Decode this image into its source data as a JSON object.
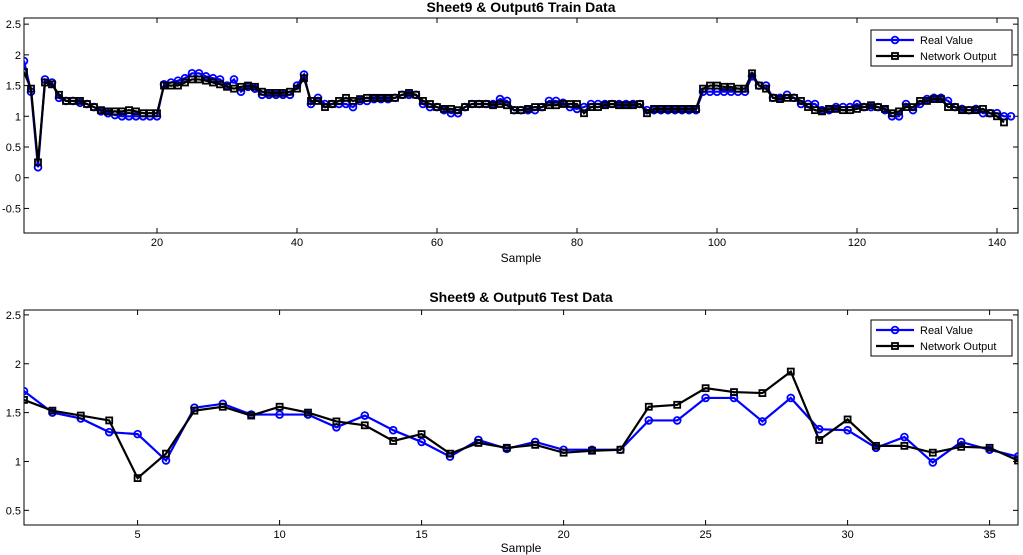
{
  "chart_data": [
    {
      "type": "line",
      "title": "Sheet9 & Output6 Train Data",
      "xlabel": "Sample",
      "ylabel": "",
      "xlim": [
        1,
        143
      ],
      "ylim": [
        -0.9,
        2.6
      ],
      "xticks": [
        20,
        40,
        60,
        80,
        100,
        120,
        140
      ],
      "yticks": [
        -0.5,
        0,
        0.5,
        1,
        1.5,
        2,
        2.5
      ],
      "ytick_labels": [
        "-0.5",
        "0",
        "0.5",
        "1",
        "1.5",
        "2",
        "2.5"
      ],
      "grid": false,
      "legend_position": "top-right",
      "x_start": 1,
      "series": [
        {
          "name": "Real Value",
          "color": "#0000ff",
          "marker": "circle",
          "values": [
            1.9,
            1.4,
            0.17,
            1.6,
            1.55,
            1.3,
            1.25,
            1.25,
            1.22,
            1.2,
            1.15,
            1.08,
            1.05,
            1.02,
            1.0,
            1.0,
            1.0,
            1.0,
            1.0,
            1.0,
            1.52,
            1.55,
            1.58,
            1.62,
            1.7,
            1.7,
            1.65,
            1.62,
            1.6,
            1.5,
            1.6,
            1.4,
            1.48,
            1.45,
            1.35,
            1.35,
            1.35,
            1.35,
            1.35,
            1.5,
            1.68,
            1.2,
            1.3,
            1.2,
            1.2,
            1.2,
            1.2,
            1.15,
            1.25,
            1.25,
            1.28,
            1.28,
            1.28,
            1.3,
            1.35,
            1.35,
            1.35,
            1.2,
            1.15,
            1.15,
            1.1,
            1.05,
            1.05,
            1.15,
            1.2,
            1.2,
            1.2,
            1.2,
            1.28,
            1.25,
            1.1,
            1.1,
            1.1,
            1.1,
            1.15,
            1.25,
            1.25,
            1.22,
            1.15,
            1.12,
            1.15,
            1.2,
            1.2,
            1.2,
            1.2,
            1.2,
            1.2,
            1.2,
            1.2,
            1.1,
            1.1,
            1.1,
            1.1,
            1.1,
            1.1,
            1.1,
            1.1,
            1.4,
            1.4,
            1.4,
            1.4,
            1.4,
            1.4,
            1.4,
            1.65,
            1.5,
            1.5,
            1.3,
            1.3,
            1.35,
            1.3,
            1.2,
            1.2,
            1.2,
            1.1,
            1.1,
            1.15,
            1.15,
            1.15,
            1.2,
            1.15,
            1.15,
            1.15,
            1.1,
            1.0,
            1.0,
            1.2,
            1.1,
            1.2,
            1.28,
            1.3,
            1.3,
            1.25,
            1.15,
            1.12,
            1.1,
            1.12,
            1.05,
            1.05,
            1.05,
            1.0,
            1.0
          ]
        },
        {
          "name": "Network Output",
          "color": "#000000",
          "marker": "square",
          "values": [
            1.72,
            1.45,
            0.25,
            1.55,
            1.52,
            1.35,
            1.25,
            1.25,
            1.25,
            1.2,
            1.15,
            1.1,
            1.08,
            1.08,
            1.08,
            1.1,
            1.08,
            1.05,
            1.05,
            1.05,
            1.5,
            1.5,
            1.5,
            1.55,
            1.6,
            1.6,
            1.58,
            1.55,
            1.52,
            1.48,
            1.45,
            1.48,
            1.5,
            1.48,
            1.4,
            1.38,
            1.38,
            1.38,
            1.4,
            1.45,
            1.62,
            1.25,
            1.25,
            1.15,
            1.2,
            1.25,
            1.3,
            1.25,
            1.28,
            1.3,
            1.3,
            1.3,
            1.3,
            1.3,
            1.35,
            1.38,
            1.35,
            1.25,
            1.2,
            1.15,
            1.12,
            1.12,
            1.1,
            1.15,
            1.2,
            1.2,
            1.2,
            1.18,
            1.2,
            1.18,
            1.1,
            1.1,
            1.12,
            1.15,
            1.15,
            1.18,
            1.18,
            1.2,
            1.2,
            1.2,
            1.05,
            1.15,
            1.15,
            1.18,
            1.2,
            1.18,
            1.18,
            1.18,
            1.2,
            1.05,
            1.12,
            1.12,
            1.12,
            1.12,
            1.12,
            1.12,
            1.12,
            1.45,
            1.5,
            1.5,
            1.48,
            1.48,
            1.45,
            1.45,
            1.7,
            1.5,
            1.45,
            1.3,
            1.28,
            1.3,
            1.3,
            1.25,
            1.15,
            1.1,
            1.08,
            1.12,
            1.12,
            1.1,
            1.1,
            1.12,
            1.15,
            1.18,
            1.15,
            1.12,
            1.05,
            1.08,
            1.15,
            1.15,
            1.25,
            1.25,
            1.28,
            1.28,
            1.15,
            1.15,
            1.1,
            1.1,
            1.1,
            1.12,
            1.05,
            1.0,
            0.9
          ]
        }
      ]
    },
    {
      "type": "line",
      "title": "Sheet9 & Output6 Test Data",
      "xlabel": "Sample",
      "ylabel": "",
      "xlim": [
        1,
        36
      ],
      "ylim": [
        0.35,
        2.55
      ],
      "xticks": [
        5,
        10,
        15,
        20,
        25,
        30,
        35
      ],
      "yticks": [
        0.5,
        1,
        1.5,
        2,
        2.5
      ],
      "ytick_labels": [
        "0.5",
        "1",
        "1.5",
        "2",
        "2.5"
      ],
      "grid": false,
      "legend_position": "top-right",
      "x_start": 1,
      "series": [
        {
          "name": "Real Value",
          "color": "#0000ff",
          "marker": "circle",
          "values": [
            1.72,
            1.5,
            1.44,
            1.3,
            1.28,
            1.01,
            1.55,
            1.59,
            1.48,
            1.48,
            1.48,
            1.35,
            1.47,
            1.32,
            1.2,
            1.05,
            1.22,
            1.13,
            1.2,
            1.12,
            1.12,
            1.12,
            1.42,
            1.42,
            1.65,
            1.65,
            1.41,
            1.65,
            1.33,
            1.32,
            1.14,
            1.25,
            0.99,
            1.2,
            1.12,
            1.05
          ]
        },
        {
          "name": "Network Output",
          "color": "#000000",
          "marker": "square",
          "values": [
            1.63,
            1.52,
            1.47,
            1.42,
            0.83,
            1.08,
            1.52,
            1.56,
            1.47,
            1.56,
            1.5,
            1.41,
            1.37,
            1.21,
            1.28,
            1.08,
            1.19,
            1.14,
            1.17,
            1.09,
            1.11,
            1.12,
            1.56,
            1.58,
            1.75,
            1.71,
            1.7,
            1.92,
            1.22,
            1.43,
            1.16,
            1.16,
            1.09,
            1.15,
            1.14,
            1.01
          ]
        }
      ]
    }
  ]
}
